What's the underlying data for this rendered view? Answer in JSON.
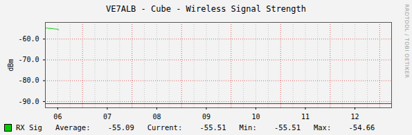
{
  "chart_data": {
    "type": "line",
    "title": "VE7ALB - Cube - Wireless Signal Strength",
    "y_label": "dBm",
    "x": [
      6.25,
      6.28,
      6.31,
      6.34,
      6.37,
      6.4,
      6.43,
      6.46,
      6.49,
      6.52
    ],
    "series": [
      {
        "name": "RX Sig",
        "color": "#00cc00",
        "values": [
          -54.9,
          -54.66,
          -54.9,
          -54.8,
          -55.0,
          -54.9,
          -55.2,
          -55.1,
          -55.3,
          -55.51
        ]
      }
    ],
    "xlim": [
      6.25,
      13.24
    ],
    "xticks": [
      {
        "value": 6.5,
        "label": "06"
      },
      {
        "value": 7.5,
        "label": "07"
      },
      {
        "value": 8.5,
        "label": "08"
      },
      {
        "value": 9.5,
        "label": "09"
      },
      {
        "value": 10.5,
        "label": "10"
      },
      {
        "value": 11.5,
        "label": "11"
      },
      {
        "value": 12.5,
        "label": "12"
      }
    ],
    "ylim": [
      -93,
      -52
    ],
    "yticks": [
      {
        "value": -60,
        "label": "-60.0"
      },
      {
        "value": -70,
        "label": "-70.0"
      },
      {
        "value": -80,
        "label": "-80.0"
      },
      {
        "value": -90,
        "label": "-90.0"
      }
    ],
    "grid": true,
    "legend": "bottom",
    "reference_line": {
      "value": -91,
      "color": "#cc0000"
    },
    "legend_stats": [
      {
        "label": "Average:",
        "value": -55.09
      },
      {
        "label": "Current:",
        "value": -55.51
      },
      {
        "label": "Min:",
        "value": -55.51
      },
      {
        "label": "Max:",
        "value": -54.66
      }
    ],
    "watermark": "RRDTOOL / TOBI OETIKER"
  }
}
